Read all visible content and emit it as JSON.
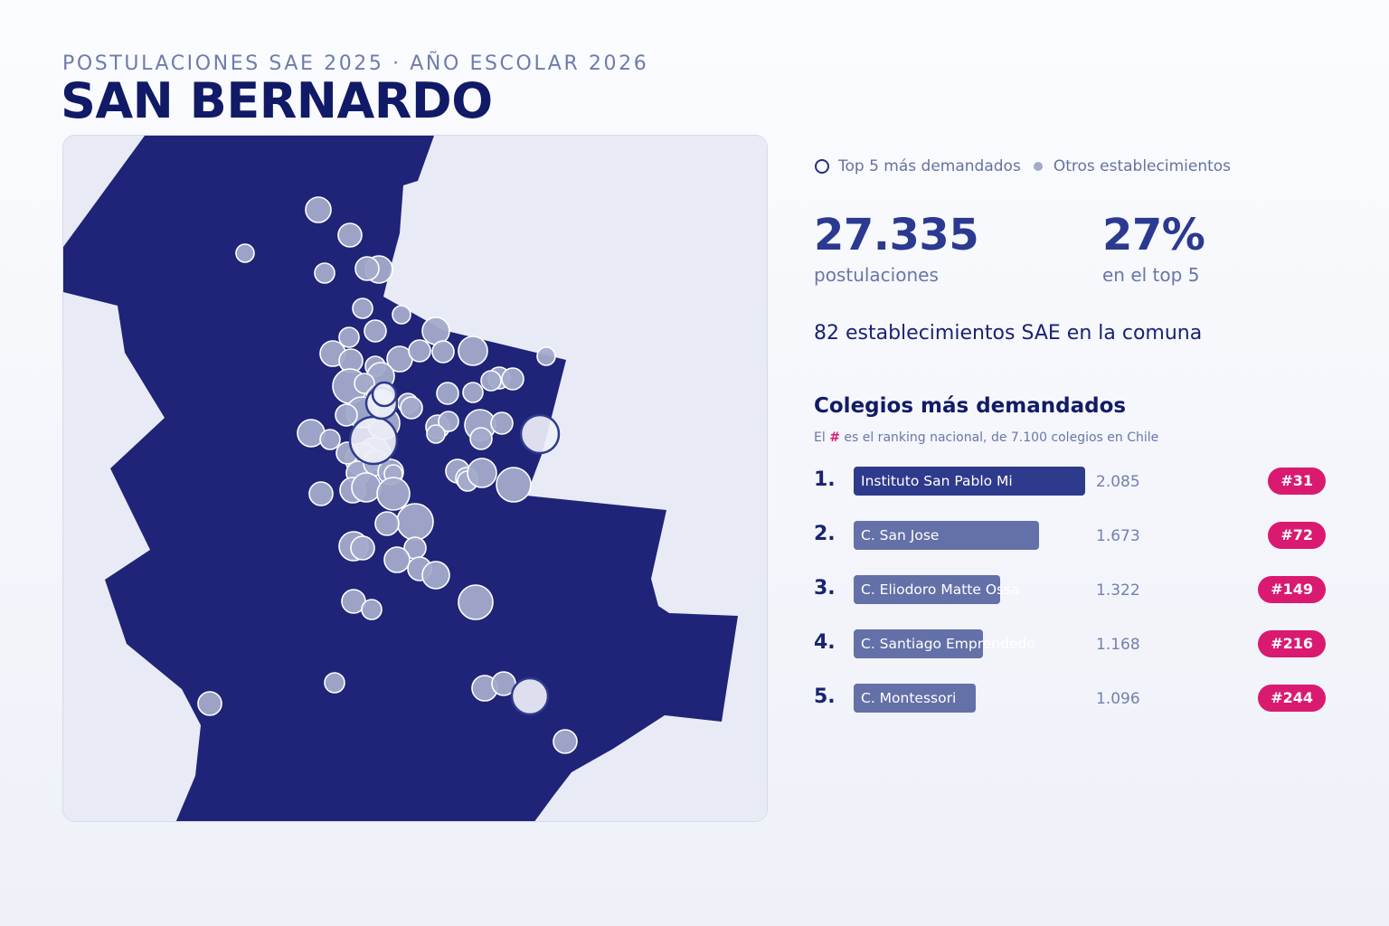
{
  "header": {
    "subtitle": "POSTULACIONES SAE 2025 · AÑO ESCOLAR 2026",
    "title": "SAN BERNARDO"
  },
  "legend": {
    "top5_label": "Top 5 más demandados",
    "others_label": "Otros establecimientos"
  },
  "stats": {
    "postulaciones_value": "27.335",
    "postulaciones_label": "postulaciones",
    "top5_share_value": "27%",
    "top5_share_label": "en el top 5",
    "schools_count_text": "82 establecimientos SAE en la comuna"
  },
  "ranking": {
    "title": "Colegios más demandados",
    "note_before": "El ",
    "note_hash": "#",
    "note_after": " es el ranking nacional, de 7.100 colegios en Chile",
    "max_value": 2085,
    "items": [
      {
        "pos": "1.",
        "name": "Instituto San Pablo Mi",
        "value": 2085,
        "value_text": "2.085",
        "national_rank": "#31"
      },
      {
        "pos": "2.",
        "name": "C. San Jose",
        "value": 1673,
        "value_text": "1.673",
        "national_rank": "#72"
      },
      {
        "pos": "3.",
        "name": "C. Eliodoro Matte Ossa",
        "value": 1322,
        "value_text": "1.322",
        "national_rank": "#149"
      },
      {
        "pos": "4.",
        "name": "C. Santiago Emprendedo",
        "value": 1168,
        "value_text": "1.168",
        "national_rank": "#216"
      },
      {
        "pos": "5.",
        "name": "C. Montessori",
        "value": 1096,
        "value_text": "1.096",
        "national_rank": "#244"
      }
    ]
  },
  "colors": {
    "commune_fill": "#1f2478",
    "background_land": "#e8ebf5",
    "point_fill": "#a3abcb",
    "top5_ring": "#2e3a8c",
    "badge": "#da1a70"
  }
}
